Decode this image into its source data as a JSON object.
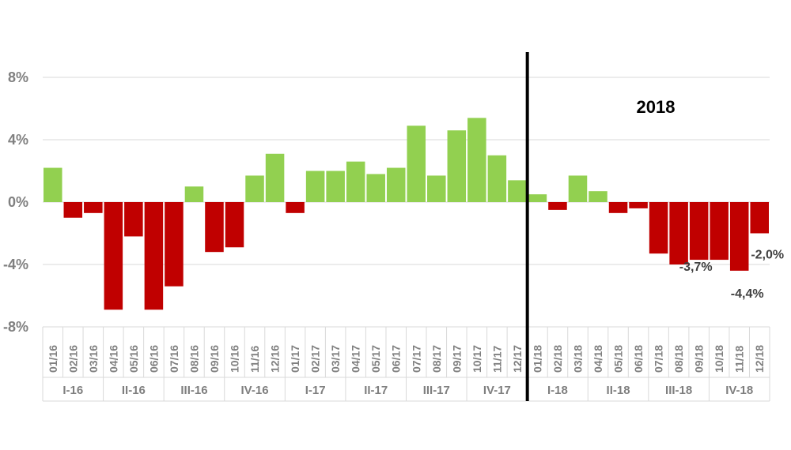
{
  "chart_data": {
    "type": "bar",
    "categories": [
      "01/16",
      "02/16",
      "03/16",
      "04/16",
      "05/16",
      "06/16",
      "07/16",
      "08/16",
      "09/16",
      "10/16",
      "11/16",
      "12/16",
      "01/17",
      "02/17",
      "03/17",
      "04/17",
      "05/17",
      "06/17",
      "07/17",
      "08/17",
      "09/17",
      "10/17",
      "11/17",
      "12/17",
      "01/18",
      "02/18",
      "03/18",
      "04/18",
      "05/18",
      "06/18",
      "07/18",
      "08/18",
      "09/18",
      "10/18",
      "11/18",
      "12/18"
    ],
    "values": [
      2.2,
      -1.0,
      -0.7,
      -6.9,
      -2.2,
      -6.9,
      -5.4,
      1.0,
      -3.2,
      -2.9,
      1.7,
      3.1,
      -0.7,
      2.0,
      2.0,
      2.6,
      1.8,
      2.2,
      4.9,
      1.7,
      4.6,
      5.4,
      3.0,
      1.4,
      0.5,
      -0.5,
      1.7,
      0.7,
      -0.7,
      -0.4,
      -3.3,
      -4.0,
      -3.7,
      -3.7,
      -4.4,
      -2.0
    ],
    "quarters": [
      {
        "label": "I-16",
        "start": 0,
        "end": 2
      },
      {
        "label": "II-16",
        "start": 3,
        "end": 5
      },
      {
        "label": "III-16",
        "start": 6,
        "end": 8
      },
      {
        "label": "IV-16",
        "start": 9,
        "end": 11
      },
      {
        "label": "I-17",
        "start": 12,
        "end": 14
      },
      {
        "label": "II-17",
        "start": 15,
        "end": 17
      },
      {
        "label": "III-17",
        "start": 18,
        "end": 20
      },
      {
        "label": "IV-17",
        "start": 21,
        "end": 23
      },
      {
        "label": "I-18",
        "start": 24,
        "end": 26
      },
      {
        "label": "II-18",
        "start": 27,
        "end": 29
      },
      {
        "label": "III-18",
        "start": 30,
        "end": 32
      },
      {
        "label": "IV-18",
        "start": 33,
        "end": 35
      }
    ],
    "yticks": [
      {
        "value": 8,
        "label": "8%"
      },
      {
        "value": 4,
        "label": "4%"
      },
      {
        "value": 0,
        "label": "0%"
      },
      {
        "value": -4,
        "label": "-4%"
      },
      {
        "value": -8,
        "label": "-8%"
      }
    ],
    "ylim": [
      -8,
      8
    ],
    "grid": true,
    "positive_color": "#92d050",
    "negative_color": "#c00000",
    "annotations": [
      {
        "index": 32,
        "text": "-3,7%"
      },
      {
        "index": 34,
        "text": "-4,4%"
      },
      {
        "index": 35,
        "text": "-2,0%"
      }
    ],
    "divider_after_index": 23,
    "year_label": "2018",
    "title": "",
    "xlabel": "",
    "ylabel": ""
  }
}
